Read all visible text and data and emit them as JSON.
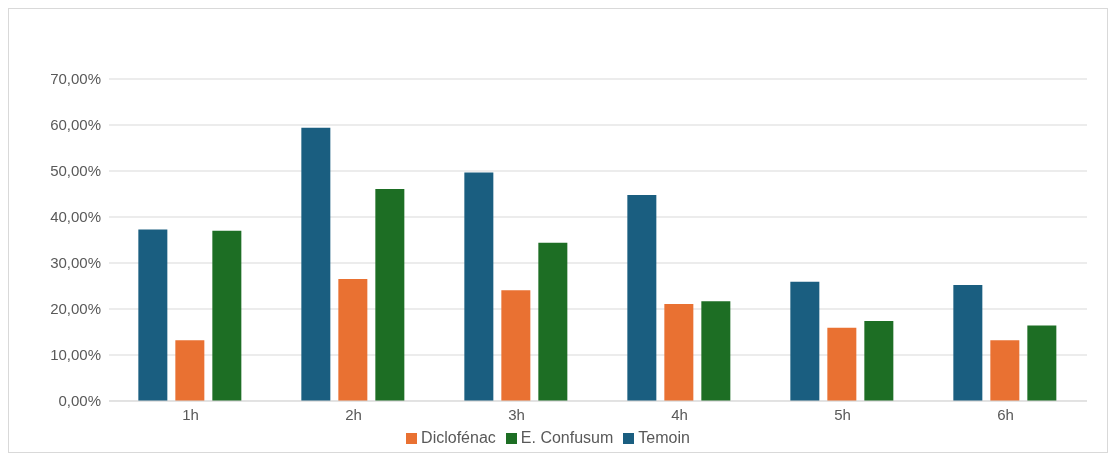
{
  "chart_data": {
    "type": "bar",
    "categories": [
      "1h",
      "2h",
      "3h",
      "4h",
      "5h",
      "6h"
    ],
    "series": [
      {
        "name": "Temoin",
        "color": "#1a5e80",
        "values": [
          37.3,
          59.4,
          49.7,
          44.8,
          25.9,
          25.2
        ]
      },
      {
        "name": "Diclofénac",
        "color": "#e97132",
        "values": [
          13.2,
          26.5,
          24.1,
          21.1,
          15.9,
          13.2
        ]
      },
      {
        "name": "E. Confusum",
        "color": "#1d6e24",
        "values": [
          37.0,
          46.1,
          34.4,
          21.7,
          17.4,
          16.4
        ]
      }
    ],
    "ylim": [
      0,
      70
    ],
    "yticks": [
      {
        "value": 0,
        "label": "0,00%"
      },
      {
        "value": 10,
        "label": "10,00%"
      },
      {
        "value": 20,
        "label": "20,00%"
      },
      {
        "value": 30,
        "label": "30,00%"
      },
      {
        "value": 40,
        "label": "40,00%"
      },
      {
        "value": 50,
        "label": "50,00%"
      },
      {
        "value": 60,
        "label": "60,00%"
      },
      {
        "value": 70,
        "label": "70,00%"
      }
    ],
    "grid": "y",
    "legend": "bottom"
  }
}
